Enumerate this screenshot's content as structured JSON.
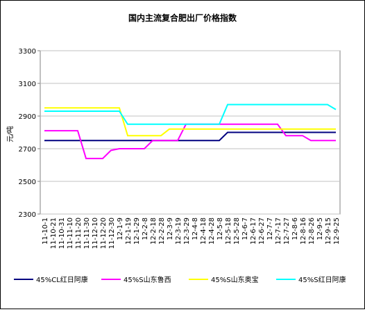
{
  "chart_data": {
    "type": "line",
    "title": "国内主流复合肥出厂价格指数",
    "y_label": "元/吨",
    "categories": [
      "11-10-1",
      "11-10-21",
      "11-10-31",
      "11-11-10",
      "11-11-20",
      "11-11-30",
      "11-12-10",
      "11-12-20",
      "11-12-30",
      "12-1-9",
      "12-1-19",
      "12-1-29",
      "12-2-8",
      "12-2-18",
      "12-2-28",
      "12-3-9",
      "12-3-19",
      "12-3-29",
      "12-4-8",
      "12-4-18",
      "12-4-28",
      "12-5-8",
      "12-5-18",
      "12-5-28",
      "12-6-7",
      "12-6-17",
      "12-6-27",
      "12-7-7",
      "12-7-17",
      "12-7-27",
      "12-8-6",
      "12-8-16",
      "12-8-26",
      "12-9-5",
      "12-9-15",
      "12-9-25"
    ],
    "series": [
      {
        "name": "45%CL红日阿康",
        "color": "#000080",
        "values": [
          2750,
          2750,
          2750,
          2750,
          2750,
          2750,
          2750,
          2750,
          2750,
          2750,
          2750,
          2750,
          2750,
          2750,
          2750,
          2750,
          2750,
          2750,
          2750,
          2750,
          2750,
          2750,
          2800,
          2800,
          2800,
          2800,
          2800,
          2800,
          2800,
          2800,
          2800,
          2800,
          2800,
          2800,
          2800,
          2800
        ]
      },
      {
        "name": "45%S山东鲁西",
        "color": "#ff00ff",
        "values": [
          2810,
          2810,
          2810,
          2810,
          2810,
          2640,
          2640,
          2640,
          2690,
          2700,
          2700,
          2700,
          2700,
          2750,
          2750,
          2750,
          2750,
          2850,
          2850,
          2850,
          2850,
          2850,
          2850,
          2850,
          2850,
          2850,
          2850,
          2850,
          2850,
          2780,
          2780,
          2780,
          2750,
          2750,
          2750,
          2750
        ]
      },
      {
        "name": "45%S山东奥宝",
        "color": "#ffff00",
        "values": [
          2950,
          2950,
          2950,
          2950,
          2950,
          2950,
          2950,
          2950,
          2950,
          2950,
          2780,
          2780,
          2780,
          2780,
          2780,
          2820,
          2820,
          2820,
          2820,
          2820,
          2820,
          2820,
          2820,
          2820,
          2820,
          2820,
          2820,
          2820,
          2820,
          2820,
          2820,
          2820,
          2820,
          2820,
          2820,
          2820
        ]
      },
      {
        "name": "45%S红日阿康",
        "color": "#00ffff",
        "values": [
          2930,
          2930,
          2930,
          2930,
          2930,
          2930,
          2930,
          2930,
          2930,
          2930,
          2850,
          2850,
          2850,
          2850,
          2850,
          2850,
          2850,
          2850,
          2850,
          2850,
          2850,
          2850,
          2970,
          2970,
          2970,
          2970,
          2970,
          2970,
          2970,
          2970,
          2970,
          2970,
          2970,
          2970,
          2970,
          2940
        ]
      }
    ],
    "ylim": [
      2300,
      3300
    ],
    "yticks": [
      2300,
      2500,
      2700,
      2900,
      3100,
      3300
    ],
    "grid": true
  }
}
